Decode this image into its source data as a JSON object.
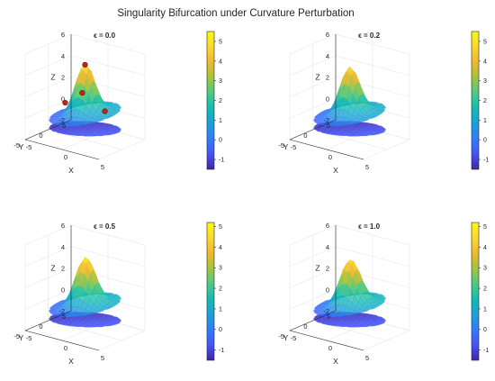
{
  "figure": {
    "title": "Singularity Bifurcation under Curvature Perturbation"
  },
  "colors": {
    "background": "#ffffff",
    "grid": "#e6e6e6",
    "text": "#262626",
    "marker": "#c0241c",
    "colormap": [
      "#3e26a8",
      "#4754f5",
      "#2f7df9",
      "#1ba0d9",
      "#11bdb3",
      "#4ccb85",
      "#a6c33c",
      "#f0b92d",
      "#fbd82e",
      "#f9fb0e"
    ]
  },
  "chart_data": [
    {
      "type": "surface3d",
      "title": "ϵ = 0.0",
      "xlabel": "X",
      "ylabel": "Y",
      "zlabel": "Z",
      "xlim": [
        -5,
        5
      ],
      "ylim": [
        -5,
        5
      ],
      "zlim": [
        -2,
        6
      ],
      "xticks": [
        "-5",
        "0",
        "5"
      ],
      "yticks": [
        "-5",
        "0",
        "5"
      ],
      "zticks": [
        "-2",
        "0",
        "2",
        "4",
        "6"
      ],
      "clim": [
        -1.5,
        5.5
      ],
      "colorbar_ticks": [
        "5",
        "4",
        "3",
        "2",
        "1",
        "0",
        "-1"
      ],
      "epsilon": 0.0,
      "peak_z": 5.3,
      "lower_sheet_z": -1.3,
      "singularities": [
        {
          "x": 0.0,
          "y": 0.0,
          "z": 5.0
        },
        {
          "x": -1.0,
          "y": 1.0,
          "z": 2.0
        },
        {
          "x": -3.0,
          "y": 0.5,
          "z": 0.8
        },
        {
          "x": 3.0,
          "y": -0.5,
          "z": 1.3
        }
      ]
    },
    {
      "type": "surface3d",
      "title": "ϵ = 0.2",
      "xlabel": "X",
      "ylabel": "Y",
      "zlabel": "Z",
      "xlim": [
        -5,
        5
      ],
      "ylim": [
        -5,
        5
      ],
      "zlim": [
        -2,
        6
      ],
      "xticks": [
        "-5",
        "0",
        "5"
      ],
      "yticks": [
        "-5",
        "0",
        "5"
      ],
      "zticks": [
        "-2",
        "0",
        "2",
        "4",
        "6"
      ],
      "clim": [
        -1.5,
        5.5
      ],
      "colorbar_ticks": [
        "5",
        "4",
        "3",
        "2",
        "1",
        "0",
        "-1"
      ],
      "epsilon": 0.2,
      "peak_z": 5.0,
      "lower_sheet_z": -1.3,
      "singularities": []
    },
    {
      "type": "surface3d",
      "title": "ϵ = 0.5",
      "xlabel": "X",
      "ylabel": "Y",
      "zlabel": "Z",
      "xlim": [
        -5,
        5
      ],
      "ylim": [
        -5,
        5
      ],
      "zlim": [
        -2,
        6
      ],
      "xticks": [
        "-5",
        "0",
        "5"
      ],
      "yticks": [
        "-5",
        "0",
        "5"
      ],
      "zticks": [
        "-2",
        "0",
        "2",
        "4",
        "6"
      ],
      "clim": [
        -1.5,
        5.2
      ],
      "colorbar_ticks": [
        "5",
        "4",
        "3",
        "2",
        "1",
        "0",
        "-1"
      ],
      "epsilon": 0.5,
      "peak_z": 5.1,
      "lower_sheet_z": -1.3,
      "singularities": []
    },
    {
      "type": "surface3d",
      "title": "ϵ = 1.0",
      "xlabel": "X",
      "ylabel": "Y",
      "zlabel": "Z",
      "xlim": [
        -5,
        5
      ],
      "ylim": [
        -5,
        5
      ],
      "zlim": [
        -2,
        6
      ],
      "xticks": [
        "-5",
        "0",
        "5"
      ],
      "yticks": [
        "-5",
        "0",
        "5"
      ],
      "zticks": [
        "-2",
        "0",
        "2",
        "4",
        "6"
      ],
      "clim": [
        -1.5,
        5.2
      ],
      "colorbar_ticks": [
        "5",
        "4",
        "3",
        "2",
        "1",
        "0",
        "-1"
      ],
      "epsilon": 1.0,
      "peak_z": 4.9,
      "lower_sheet_z": -1.3,
      "singularities": []
    }
  ]
}
